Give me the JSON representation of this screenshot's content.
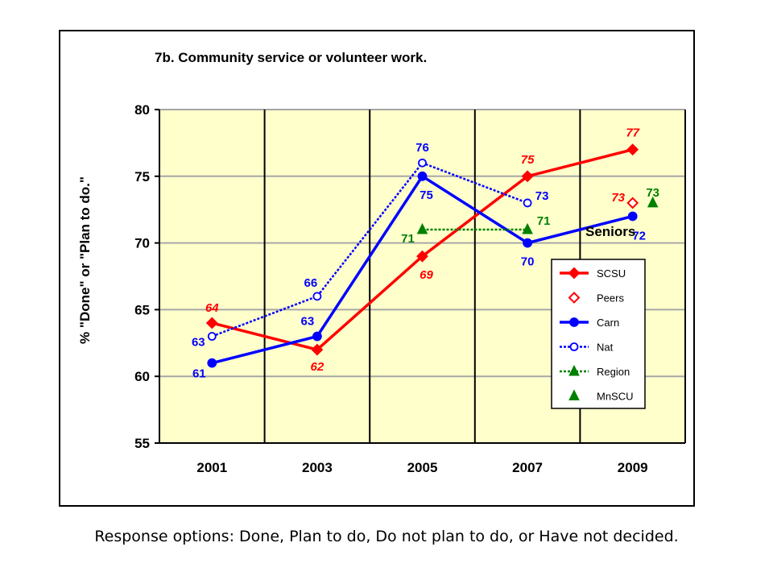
{
  "caption": "Response options: Done, Plan to do, Do not plan to do, or Have not decided.",
  "chart_data": {
    "type": "line",
    "title": "7b.  Community service or volunteer work.",
    "ylabel": "% \"Done\" or \"Plan to do.\"",
    "xlabel": "",
    "categories": [
      "2001",
      "2003",
      "2005",
      "2007",
      "2009"
    ],
    "ylim": [
      55,
      80
    ],
    "yticks": [
      55,
      60,
      65,
      70,
      75,
      80
    ],
    "plot_background": "#ffffcc",
    "grid": true,
    "legend_title": "Seniors",
    "legend_position": "right",
    "series": [
      {
        "name": "SCSU",
        "values": [
          64,
          62,
          69,
          75,
          77
        ],
        "labels": [
          "64",
          "62",
          "69",
          "75",
          "77"
        ],
        "color": "#ff0000",
        "style": "solid",
        "marker": "diamond-filled"
      },
      {
        "name": "Peers",
        "values": [
          null,
          null,
          null,
          null,
          73
        ],
        "labels": [
          null,
          null,
          null,
          null,
          "73"
        ],
        "color": "#ff0000",
        "style": "none",
        "marker": "diamond-open"
      },
      {
        "name": "Carn",
        "values": [
          61,
          63,
          75,
          70,
          72
        ],
        "labels": [
          "61",
          "63",
          "75",
          "70",
          "72"
        ],
        "color": "#0000ff",
        "style": "solid",
        "marker": "circle-filled"
      },
      {
        "name": "Nat",
        "values": [
          63,
          66,
          76,
          73,
          null
        ],
        "labels": [
          "63",
          "66",
          "76",
          "73",
          null
        ],
        "color": "#0000ff",
        "style": "dotted",
        "marker": "circle-open"
      },
      {
        "name": "Region",
        "values": [
          null,
          null,
          71,
          71,
          null
        ],
        "labels": [
          null,
          null,
          "71",
          "71",
          null
        ],
        "color": "#008000",
        "style": "dotted",
        "marker": "triangle-filled"
      },
      {
        "name": "MnSCU",
        "values": [
          null,
          null,
          null,
          null,
          73
        ],
        "labels": [
          null,
          null,
          null,
          null,
          "73"
        ],
        "color": "#008000",
        "style": "none",
        "marker": "triangle-filled"
      }
    ]
  }
}
